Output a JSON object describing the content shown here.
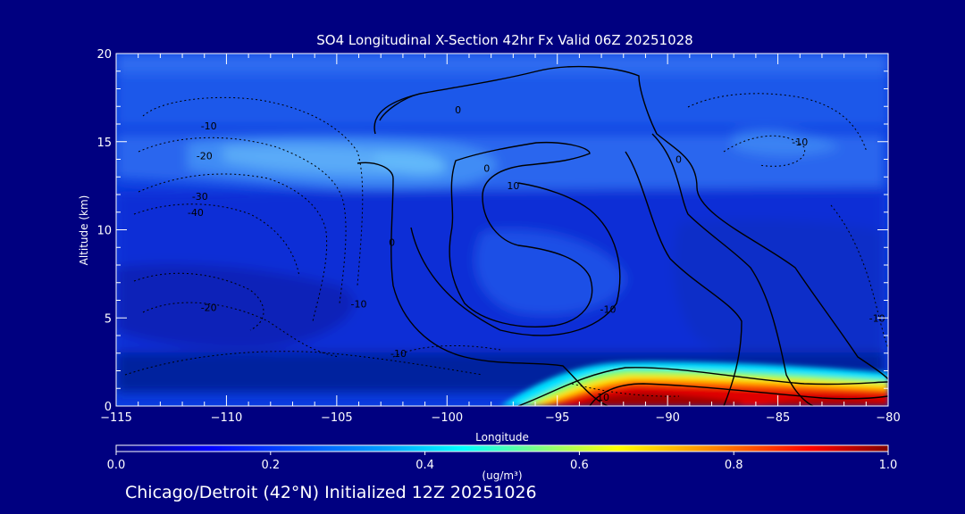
{
  "chart_data": {
    "type": "heatmap",
    "title": "SO4 Longitudinal X-Section 42hr  Fx Valid 06Z 20251028",
    "xlabel": "Longitude",
    "ylabel": "Altitude (km)",
    "xlim": [
      -115,
      -80
    ],
    "ylim": [
      0,
      20
    ],
    "x_ticks": [
      -115,
      -110,
      -105,
      -100,
      -95,
      -90,
      -85,
      -80
    ],
    "y_ticks": [
      0,
      5,
      10,
      15,
      20
    ],
    "x_tick_labels": [
      "−115",
      "−110",
      "−105",
      "−100",
      "−95",
      "−90",
      "−85",
      "−80"
    ],
    "y_tick_labels": [
      "0",
      "5",
      "10",
      "15",
      "20"
    ],
    "colorbar": {
      "min": 0.0,
      "max": 1.0,
      "ticks": [
        0.0,
        0.2,
        0.4,
        0.6,
        0.8,
        1.0
      ],
      "tick_labels": [
        "0.0",
        "0.2",
        "0.4",
        "0.6",
        "0.8",
        "1.0"
      ],
      "unit": "(ug/m³)"
    },
    "contour_labels": [
      {
        "text": "0",
        "lon": -99.5,
        "alt": 16.8
      },
      {
        "text": "0",
        "lon": -98.2,
        "alt": 13.5
      },
      {
        "text": "0",
        "lon": -89.5,
        "alt": 14.0
      },
      {
        "text": "0",
        "lon": -102.5,
        "alt": 9.3
      },
      {
        "text": "10",
        "lon": -97.0,
        "alt": 12.5
      },
      {
        "text": "-10",
        "lon": -110.8,
        "alt": 15.9
      },
      {
        "text": "-20",
        "lon": -111.0,
        "alt": 14.2
      },
      {
        "text": "-30",
        "lon": -111.2,
        "alt": 11.9
      },
      {
        "text": "-40",
        "lon": -111.4,
        "alt": 11.0
      },
      {
        "text": "-20",
        "lon": -110.8,
        "alt": 5.6
      },
      {
        "text": "-10",
        "lon": -104.0,
        "alt": 5.8
      },
      {
        "text": "-10",
        "lon": -102.2,
        "alt": 3.0
      },
      {
        "text": "-10",
        "lon": -92.7,
        "alt": 5.5
      },
      {
        "text": "-10",
        "lon": -93.0,
        "alt": 0.5
      },
      {
        "text": "-10",
        "lon": -84.0,
        "alt": 15.0
      },
      {
        "text": "-10",
        "lon": -80.5,
        "alt": 5.0
      }
    ]
  },
  "caption": "Chicago/Detroit (42°N) Initialized 12Z 20251026"
}
